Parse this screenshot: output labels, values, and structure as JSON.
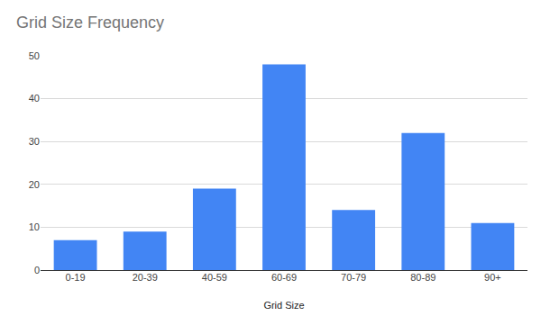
{
  "chart_data": {
    "type": "bar",
    "title": "Grid Size Frequency",
    "x_label": "Grid Size",
    "categories": [
      "0-19",
      "20-39",
      "40-59",
      "60-69",
      "70-79",
      "80-89",
      "90+"
    ],
    "values": [
      7,
      9,
      19,
      48,
      14,
      32,
      11
    ],
    "color": "#4285f4",
    "ylim": [
      0,
      50
    ],
    "yticks": [
      0,
      10,
      20,
      30,
      40,
      50
    ],
    "grid": true
  }
}
